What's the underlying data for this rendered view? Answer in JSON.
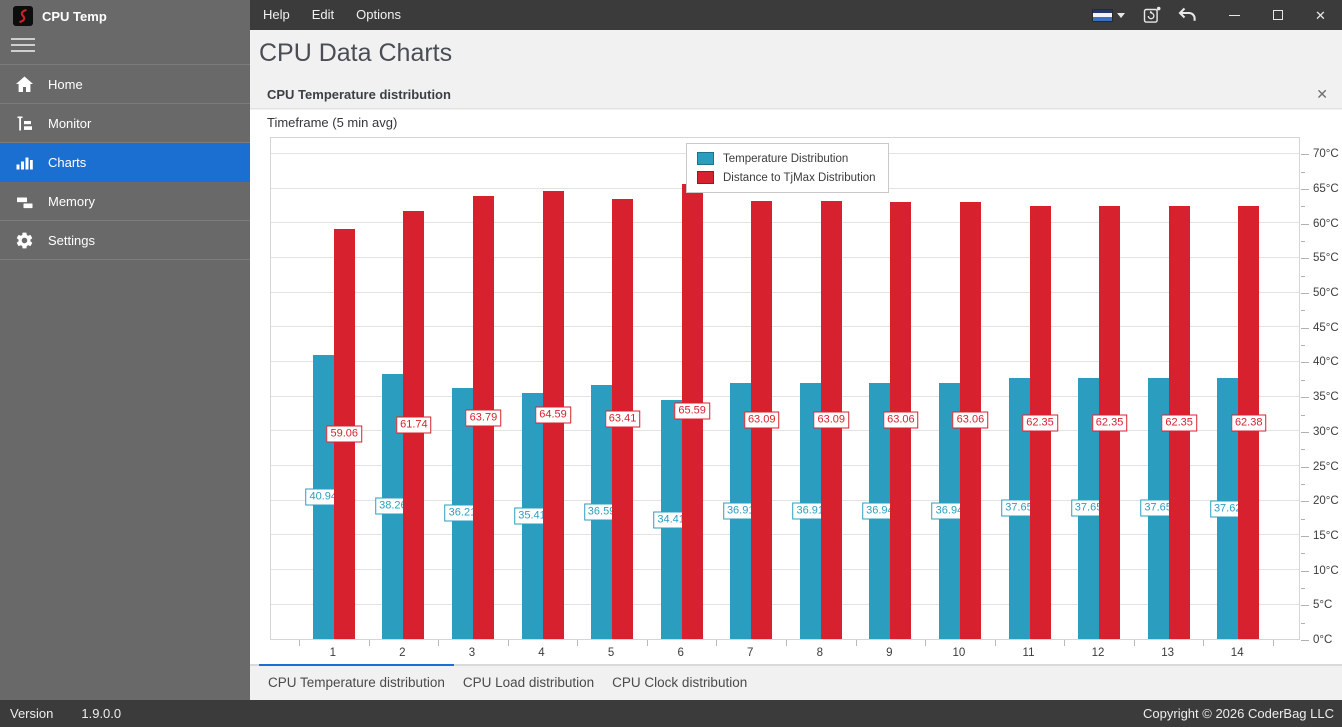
{
  "window": {
    "title": "CPU Temp"
  },
  "titlebar": {
    "menu_items": [
      "Help",
      "Edit",
      "Options"
    ],
    "icons": [
      "language-flag-icon",
      "check-update-icon",
      "undo-icon",
      "minimize-icon",
      "maximize-icon",
      "close-icon"
    ]
  },
  "sidebar": {
    "items": [
      {
        "label": "Home",
        "icon": "home-icon",
        "active": false
      },
      {
        "label": "Monitor",
        "icon": "monitor-icon",
        "active": false
      },
      {
        "label": "Charts",
        "icon": "bar-chart-icon",
        "active": true
      },
      {
        "label": "Memory",
        "icon": "memory-icon",
        "active": false
      },
      {
        "label": "Settings",
        "icon": "gear-icon",
        "active": false
      }
    ]
  },
  "page": {
    "title": "CPU Data Charts"
  },
  "panel": {
    "title": "CPU Temperature distribution",
    "close_glyph": "✕"
  },
  "chart_data": {
    "type": "bar",
    "title": "Timeframe (5 min avg)",
    "categories": [
      "1",
      "2",
      "3",
      "4",
      "5",
      "6",
      "7",
      "8",
      "9",
      "10",
      "11",
      "12",
      "13",
      "14"
    ],
    "series": [
      {
        "name": "Temperature Distribution",
        "color": "#2B9EBF",
        "values": [
          40.94,
          38.26,
          36.21,
          35.41,
          36.59,
          34.41,
          36.91,
          36.91,
          36.94,
          36.94,
          37.65,
          37.65,
          37.65,
          37.62
        ]
      },
      {
        "name": "Distance to TjMax Distribution",
        "color": "#D7212E",
        "values": [
          59.06,
          61.74,
          63.79,
          64.59,
          63.41,
          65.59,
          63.09,
          63.09,
          63.06,
          63.06,
          62.35,
          62.35,
          62.35,
          62.38
        ]
      }
    ],
    "ylim": [
      0,
      72.5
    ],
    "ytick_step": 5,
    "ytick_max": 70,
    "ytick_suffix": "°C",
    "grid": "horizontal",
    "legend_position": "top-center",
    "bar_labels": "centered-on-bar"
  },
  "tabs": [
    {
      "label": "CPU Temperature distribution",
      "active": true
    },
    {
      "label": "CPU Load distribution",
      "active": false
    },
    {
      "label": "CPU Clock distribution",
      "active": false
    }
  ],
  "footer": {
    "version_label": "Version",
    "version_value": "1.9.0.0",
    "copyright": "Copyright © 2026 CoderBag LLC"
  },
  "colors": {
    "accent_blue": "#1b6fd1",
    "series_teal": "#2B9EBF",
    "series_red": "#D7212E"
  }
}
